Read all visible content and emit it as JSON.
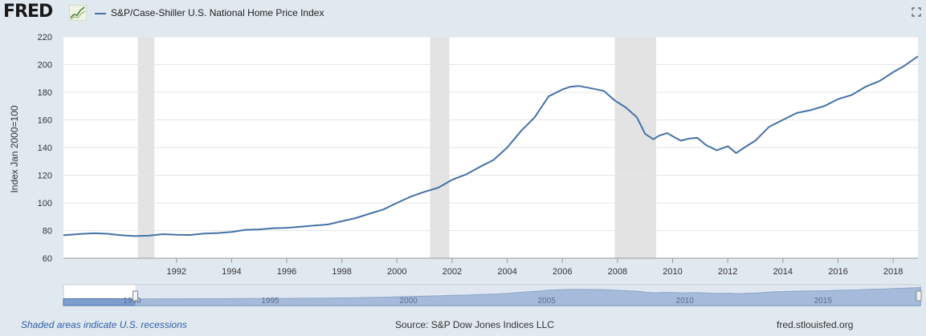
{
  "header": {
    "logo": "FRED",
    "logo_icon": "line-graph-icon",
    "legend_label": "S&P/Case-Shiller U.S. National Home Price Index",
    "fullscreen_icon": "fullscreen-icon"
  },
  "footer": {
    "note": "Shaded areas indicate U.S. recessions",
    "source": "Source: S&P Dow Jones Indices LLC",
    "site": "fred.stlouisfed.org"
  },
  "colors": {
    "series": "#4572a7",
    "recession": "#e3e3e3",
    "background": "#e1e9f0",
    "plot": "#ffffff",
    "navigator_fill": "#7f9ecf",
    "navigator_band": "#c7d3e6"
  },
  "chart_data": {
    "type": "line",
    "title": "",
    "xlabel": "",
    "ylabel": "Index Jan 2000=100",
    "xlim": [
      1987.9,
      2018.9
    ],
    "ylim": [
      60,
      220
    ],
    "yticks": [
      60,
      80,
      100,
      120,
      140,
      160,
      180,
      200,
      220
    ],
    "xticks": [
      "1992",
      "1994",
      "1996",
      "1998",
      "2000",
      "2002",
      "2004",
      "2006",
      "2008",
      "2010",
      "2012",
      "2014",
      "2016",
      "2018"
    ],
    "grid": true,
    "legend": "top-left",
    "recessions": [
      [
        1990.6,
        1991.2
      ],
      [
        2001.2,
        2001.9
      ],
      [
        2007.9,
        2009.4
      ]
    ],
    "series": [
      {
        "name": "S&P/Case-Shiller U.S. National Home Price Index",
        "x": [
          1987.9,
          1988.5,
          1989.0,
          1989.5,
          1990.0,
          1990.5,
          1991.0,
          1991.5,
          1992.0,
          1992.5,
          1993.0,
          1993.5,
          1994.0,
          1994.5,
          1995.0,
          1995.5,
          1996.0,
          1996.5,
          1997.0,
          1997.5,
          1998.0,
          1998.5,
          1999.0,
          1999.5,
          2000.0,
          2000.5,
          2001.0,
          2001.5,
          2002.0,
          2002.5,
          2003.0,
          2003.5,
          2004.0,
          2004.5,
          2005.0,
          2005.5,
          2006.0,
          2006.3,
          2006.6,
          2007.0,
          2007.5,
          2007.9,
          2008.3,
          2008.7,
          2009.0,
          2009.3,
          2009.5,
          2009.8,
          2010.1,
          2010.3,
          2010.6,
          2010.9,
          2011.2,
          2011.6,
          2012.0,
          2012.3,
          2012.6,
          2013.0,
          2013.5,
          2014.0,
          2014.5,
          2015.0,
          2015.5,
          2016.0,
          2016.5,
          2017.0,
          2017.5,
          2018.0,
          2018.4,
          2018.9
        ],
        "values": [
          76.6,
          77.5,
          78.0,
          77.7,
          76.6,
          76.0,
          76.3,
          77.4,
          77.0,
          76.8,
          77.8,
          78.2,
          79.0,
          80.5,
          80.8,
          81.7,
          82.0,
          82.8,
          83.6,
          84.4,
          86.7,
          89.0,
          92.2,
          95.2,
          100.0,
          104.5,
          108.0,
          111.0,
          116.7,
          120.5,
          126.0,
          131.0,
          140.0,
          152.0,
          162.0,
          177.0,
          182.0,
          184.0,
          184.5,
          183.0,
          181.0,
          174.0,
          169.0,
          162.0,
          150.0,
          146.0,
          148.5,
          150.5,
          147.0,
          145.0,
          146.5,
          147.0,
          142.0,
          138.0,
          141.0,
          136.0,
          140.0,
          145.0,
          155.0,
          160.0,
          165.0,
          167.0,
          170.0,
          175.0,
          178.0,
          184.0,
          188.0,
          194.5,
          199.0,
          206.0
        ]
      }
    ]
  },
  "navigator": {
    "labels": [
      "1990",
      "1995",
      "2000",
      "2005",
      "2010",
      "2015"
    ]
  }
}
